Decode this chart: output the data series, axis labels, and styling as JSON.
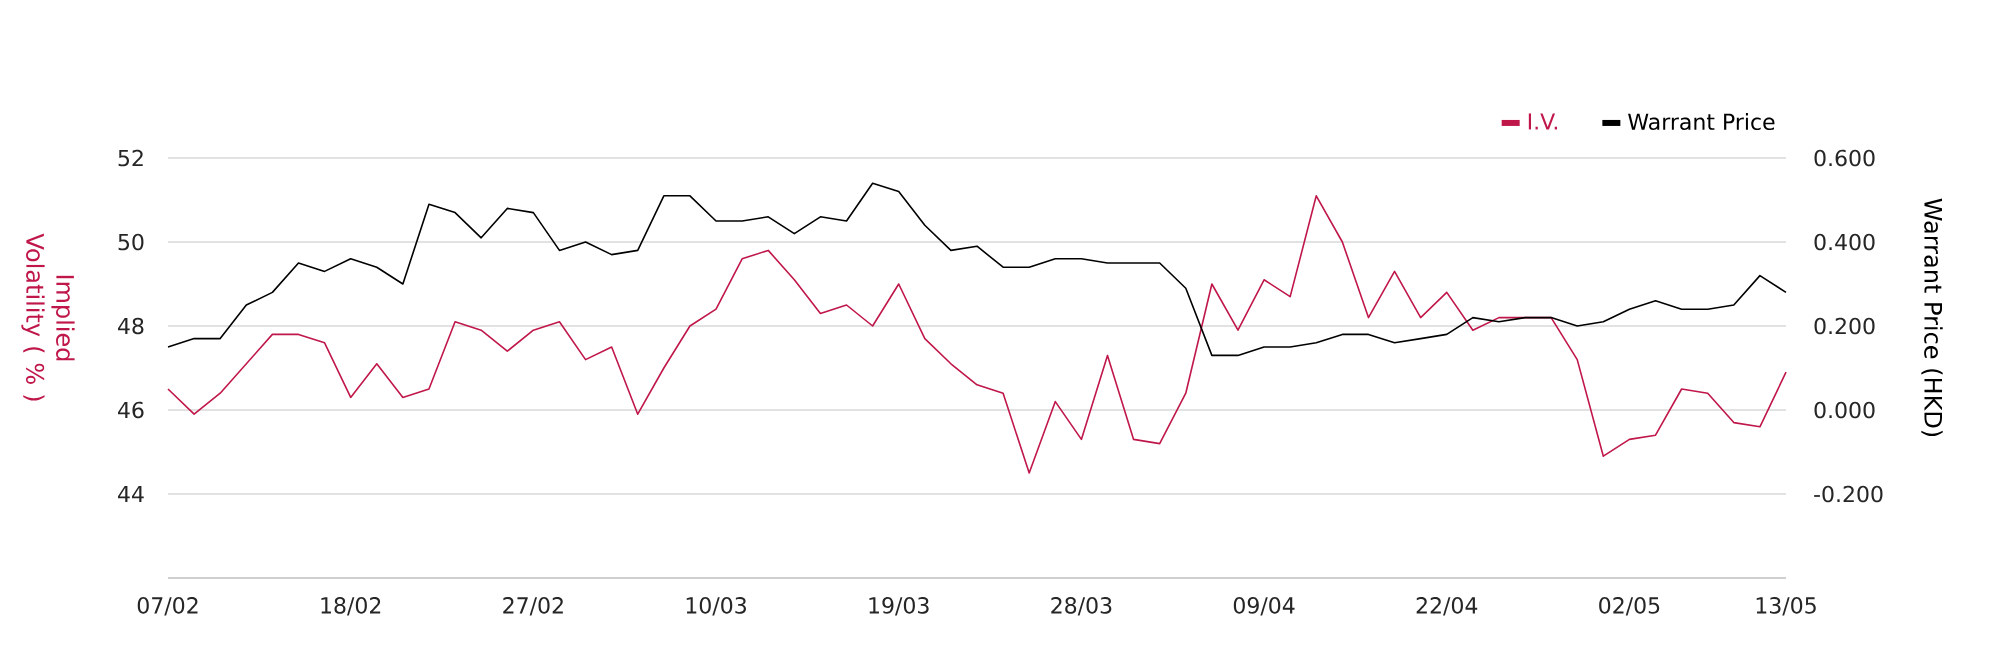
{
  "chart_data": {
    "type": "line",
    "categories": [
      "07/02",
      null,
      null,
      null,
      null,
      null,
      null,
      "18/02",
      null,
      null,
      null,
      null,
      null,
      null,
      "27/02",
      null,
      null,
      null,
      null,
      null,
      null,
      "10/03",
      null,
      null,
      null,
      null,
      null,
      null,
      "19/03",
      null,
      null,
      null,
      null,
      null,
      null,
      "28/03",
      null,
      null,
      null,
      null,
      null,
      null,
      "09/04",
      null,
      null,
      null,
      null,
      null,
      null,
      "22/04",
      null,
      null,
      null,
      null,
      null,
      null,
      "02/05",
      null,
      null,
      null,
      null,
      null,
      "13/05"
    ],
    "series": [
      {
        "name": "I.V.",
        "color": "#c0174a",
        "axis": "y",
        "values": [
          46.5,
          45.9,
          46.4,
          47.1,
          47.8,
          47.8,
          47.6,
          46.3,
          47.1,
          46.3,
          46.5,
          48.1,
          47.9,
          47.4,
          47.9,
          48.1,
          47.2,
          47.5,
          45.9,
          47.0,
          48.0,
          48.4,
          49.6,
          49.8,
          49.1,
          48.3,
          48.5,
          48.0,
          49.0,
          47.7,
          47.1,
          46.6,
          46.4,
          44.5,
          46.2,
          45.3,
          47.3,
          45.3,
          45.2,
          46.4,
          49.0,
          47.9,
          49.1,
          48.7,
          51.1,
          50.0,
          48.2,
          49.3,
          48.2,
          48.8,
          47.9,
          48.2,
          48.2,
          48.2,
          47.2,
          44.9,
          45.3,
          45.4,
          46.5,
          46.4,
          45.7,
          45.6,
          46.9
        ]
      },
      {
        "name": "Warrant Price",
        "color": "#000000",
        "axis": "y2",
        "values": [
          0.15,
          0.17,
          0.17,
          0.25,
          0.28,
          0.35,
          0.33,
          0.36,
          0.34,
          0.3,
          0.49,
          0.47,
          0.41,
          0.48,
          0.47,
          0.38,
          0.4,
          0.37,
          0.38,
          0.51,
          0.51,
          0.45,
          0.45,
          0.46,
          0.42,
          0.46,
          0.45,
          0.54,
          0.52,
          0.44,
          0.38,
          0.39,
          0.34,
          0.34,
          0.36,
          0.36,
          0.35,
          0.35,
          0.35,
          0.29,
          0.13,
          0.13,
          0.15,
          0.15,
          0.16,
          0.18,
          0.18,
          0.16,
          0.17,
          0.18,
          0.22,
          0.21,
          0.22,
          0.22,
          0.2,
          0.21,
          0.24,
          0.26,
          0.24,
          0.24,
          0.25,
          0.32,
          0.28
        ]
      }
    ],
    "ylabel": "Implied Volatility ( % )",
    "y2label": "Warrant Price (HKD)",
    "ylim": [
      42,
      52
    ],
    "yticks": [
      44,
      46,
      48,
      50,
      52
    ],
    "y2lim": [
      -0.4,
      0.6
    ],
    "y2ticks": [
      {
        "value": -0.2,
        "label": "-0.200"
      },
      {
        "value": 0,
        "label": "0.000"
      },
      {
        "value": 0.2,
        "label": "0.200"
      },
      {
        "value": 0.4,
        "label": "0.400"
      },
      {
        "value": 0.6,
        "label": "0.600"
      }
    ],
    "grid": "y",
    "legend": "top right",
    "marker": "none",
    "line_style": "solid"
  }
}
